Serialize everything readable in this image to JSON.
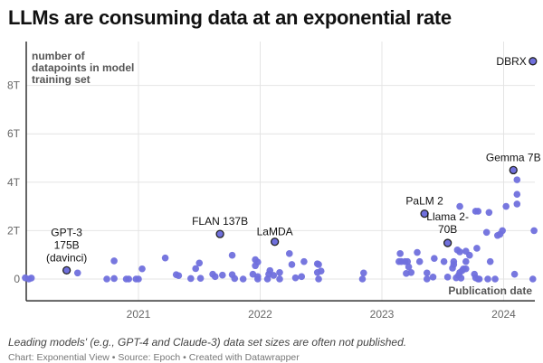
{
  "title": "LLMs are consuming data at an exponential rate",
  "note": "Leading models' (e.g., GPT-4 and Claude-3) data set sizes are often not published.",
  "credit": "Chart: Exponential View • Source: Epoch • Created with Datawrapper",
  "chart_data": {
    "type": "scatter",
    "title": "LLMs are consuming data at an exponential rate",
    "ylabel": "number of datapoints in model training set",
    "ylabel_lines": [
      "number of",
      "datapoints in model",
      "training set"
    ],
    "xlabel": "Publication date",
    "xlim": [
      2020.07,
      2024.25
    ],
    "ylim": [
      -0.9,
      10
    ],
    "x_ticks": [
      2021,
      2022,
      2023,
      2024
    ],
    "x_tick_labels": [
      "2021",
      "2022",
      "2023",
      "2024"
    ],
    "y_ticks": [
      0,
      2,
      4,
      6,
      8
    ],
    "y_tick_labels": [
      "0",
      "2T",
      "4T",
      "6T",
      "8T"
    ],
    "y_unit": "trillions",
    "grid": true,
    "colors": {
      "point": "#7070dd",
      "highlight_stroke": "#222222"
    },
    "highlighted": [
      {
        "label": "GPT-3 175B (davinci)",
        "lines": [
          "GPT-3",
          "175B",
          "(davinci)"
        ],
        "x": 2020.41,
        "y": 0.36
      },
      {
        "label": "FLAN 137B",
        "lines": [
          "FLAN 137B"
        ],
        "x": 2021.67,
        "y": 1.86
      },
      {
        "label": "LaMDA",
        "lines": [
          "LaMDA"
        ],
        "x": 2022.12,
        "y": 1.54
      },
      {
        "label": "PaLM 2",
        "lines": [
          "PaLM 2"
        ],
        "x": 2023.35,
        "y": 2.7
      },
      {
        "label": "Llama 2-70B",
        "lines": [
          "Llama 2-",
          "70B"
        ],
        "x": 2023.54,
        "y": 1.49
      },
      {
        "label": "Gemma 7B",
        "lines": [
          "Gemma 7B"
        ],
        "x": 2024.08,
        "y": 4.5
      },
      {
        "label": "DBRX",
        "lines": [
          "DBRX"
        ],
        "x": 2024.24,
        "y": 9.0
      }
    ],
    "points": [
      [
        2020.07,
        0.05
      ],
      [
        2020.1,
        0
      ],
      [
        2020.12,
        0.04
      ],
      [
        2020.5,
        0.25
      ],
      [
        2020.8,
        0.75
      ],
      [
        2020.74,
        0
      ],
      [
        2020.8,
        0.02
      ],
      [
        2020.9,
        0
      ],
      [
        2020.92,
        0
      ],
      [
        2020.98,
        0
      ],
      [
        2021.0,
        0
      ],
      [
        2021.03,
        0.42
      ],
      [
        2021.22,
        0.87
      ],
      [
        2021.31,
        0.18
      ],
      [
        2021.33,
        0.14
      ],
      [
        2021.43,
        0.02
      ],
      [
        2021.47,
        0.43
      ],
      [
        2021.5,
        0.66
      ],
      [
        2021.51,
        0.03
      ],
      [
        2021.61,
        0.2
      ],
      [
        2021.63,
        0.1
      ],
      [
        2021.69,
        0.16
      ],
      [
        2021.77,
        0.18
      ],
      [
        2021.79,
        0.02
      ],
      [
        2021.77,
        0.98
      ],
      [
        2021.86,
        0
      ],
      [
        2021.94,
        0.2
      ],
      [
        2021.96,
        0.8
      ],
      [
        2021.96,
        0.55
      ],
      [
        2021.98,
        0.7
      ],
      [
        2021.98,
        0.1
      ],
      [
        2021.98,
        0
      ],
      [
        2022.06,
        0
      ],
      [
        2022.07,
        0.2
      ],
      [
        2022.08,
        0.35
      ],
      [
        2022.11,
        0.15
      ],
      [
        2022.16,
        0.27
      ],
      [
        2022.16,
        0
      ],
      [
        2022.24,
        1.05
      ],
      [
        2022.26,
        0.6
      ],
      [
        2022.29,
        0.05
      ],
      [
        2022.34,
        0.1
      ],
      [
        2022.36,
        0.72
      ],
      [
        2022.47,
        0.63
      ],
      [
        2022.48,
        0.6
      ],
      [
        2022.47,
        0.27
      ],
      [
        2022.5,
        0.33
      ],
      [
        2022.48,
        0
      ],
      [
        2022.84,
        0
      ],
      [
        2022.85,
        0.25
      ],
      [
        2023.15,
        1.05
      ],
      [
        2023.14,
        0.72
      ],
      [
        2023.16,
        0.72
      ],
      [
        2023.19,
        0.72
      ],
      [
        2023.21,
        0.72
      ],
      [
        2023.22,
        0.5
      ],
      [
        2023.24,
        0.27
      ],
      [
        2023.2,
        0.23
      ],
      [
        2023.29,
        1.1
      ],
      [
        2023.31,
        0.72
      ],
      [
        2023.37,
        0.25
      ],
      [
        2023.37,
        0
      ],
      [
        2023.42,
        0.08
      ],
      [
        2023.43,
        0.85
      ],
      [
        2023.51,
        0.72
      ],
      [
        2023.54,
        0.08
      ],
      [
        2023.59,
        0.72
      ],
      [
        2023.58,
        0.45
      ],
      [
        2023.59,
        0.6
      ],
      [
        2023.61,
        0.05
      ],
      [
        2023.63,
        0.15
      ],
      [
        2023.64,
        0.27
      ],
      [
        2023.66,
        0.35
      ],
      [
        2023.67,
        0.42
      ],
      [
        2023.69,
        0.42
      ],
      [
        2023.62,
        1.2
      ],
      [
        2023.64,
        1.12
      ],
      [
        2023.64,
        3.0
      ],
      [
        2023.65,
        0.04
      ],
      [
        2023.69,
        1.15
      ],
      [
        2023.72,
        0.98
      ],
      [
        2023.69,
        0.72
      ],
      [
        2023.76,
        0.2
      ],
      [
        2023.77,
        0.05
      ],
      [
        2023.79,
        0
      ],
      [
        2023.8,
        0
      ],
      [
        2023.77,
        2.8
      ],
      [
        2023.79,
        2.8
      ],
      [
        2023.78,
        1.27
      ],
      [
        2023.88,
        2.75
      ],
      [
        2023.86,
        1.93
      ],
      [
        2023.89,
        0.72
      ],
      [
        2023.87,
        0
      ],
      [
        2023.93,
        0
      ],
      [
        2023.95,
        1.8
      ],
      [
        2023.97,
        1.85
      ],
      [
        2023.99,
        2.0
      ],
      [
        2024.02,
        3.0
      ],
      [
        2024.09,
        0.2
      ],
      [
        2024.11,
        4.1
      ],
      [
        2024.11,
        3.5
      ],
      [
        2024.11,
        3.1
      ],
      [
        2024.24,
        0
      ],
      [
        2024.25,
        2.0
      ]
    ]
  }
}
